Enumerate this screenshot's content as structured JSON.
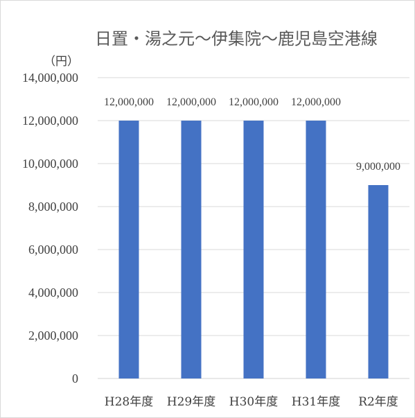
{
  "chart_data": {
    "type": "bar",
    "title": "日置・湯之元〜伊集院〜鹿児島空港線",
    "unit_label": "（円）",
    "categories": [
      "H28年度",
      "H29年度",
      "H30年度",
      "H31年度",
      "R2年度"
    ],
    "values": [
      12000000,
      12000000,
      12000000,
      12000000,
      9000000
    ],
    "data_labels": [
      "12,000,000",
      "12,000,000",
      "12,000,000",
      "12,000,000",
      "9,000,000"
    ],
    "ylim": [
      0,
      14000000
    ],
    "yticks": [
      0,
      2000000,
      4000000,
      6000000,
      8000000,
      10000000,
      12000000,
      14000000
    ],
    "ytick_labels": [
      "0",
      "2,000,000",
      "4,000,000",
      "6,000,000",
      "8,000,000",
      "10,000,000",
      "12,000,000",
      "14,000,000"
    ],
    "bar_color": "#4472c4",
    "grid_color": "#d9d9d9",
    "grid": true,
    "legend": "none"
  }
}
